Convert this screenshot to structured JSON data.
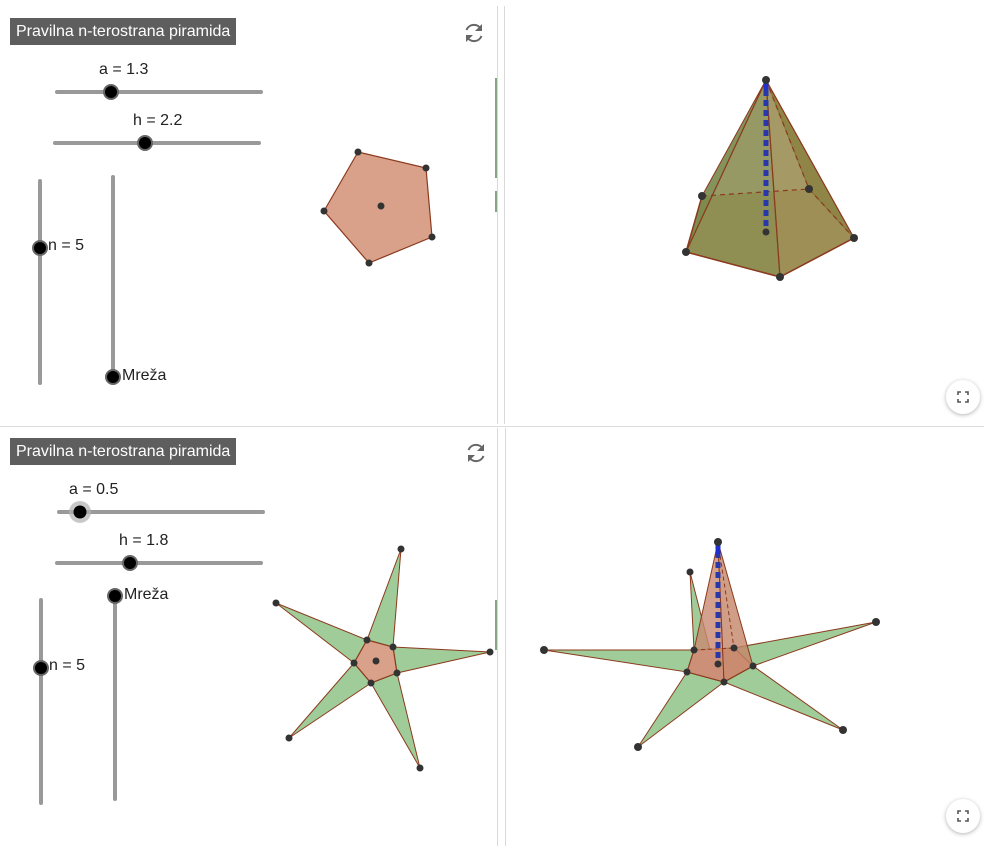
{
  "panels": [
    {
      "title": "Pravilna n-terostrana piramida",
      "sliders": {
        "a": {
          "label": "a = 1.3",
          "value": 1.3
        },
        "h": {
          "label": "h = 2.2",
          "value": 2.2
        },
        "n": {
          "label": "n = 5",
          "value": 5
        },
        "net": {
          "label": "Mreža"
        }
      },
      "icons": {
        "reset": "reset-icon",
        "fullscreen": "fullscreen-icon"
      }
    },
    {
      "title": "Pravilna n-terostrana piramida",
      "sliders": {
        "a": {
          "label": "a = 0.5",
          "value": 0.5
        },
        "h": {
          "label": "h = 1.8",
          "value": 1.8
        },
        "n": {
          "label": "n = 5",
          "value": 5
        },
        "net": {
          "label": "Mreža"
        }
      },
      "icons": {
        "reset": "reset-icon",
        "fullscreen": "fullscreen-icon"
      }
    }
  ],
  "colors": {
    "base_face": "#d9a08a",
    "side_face": "#7e8a45",
    "net_face": "#9fcc98",
    "edge": "#8b3a1e",
    "height_line": "#2838a8"
  }
}
